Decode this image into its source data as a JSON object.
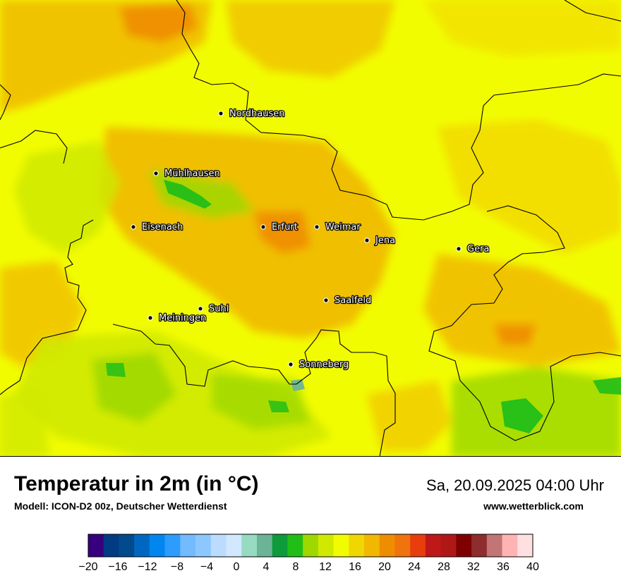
{
  "map": {
    "cities": [
      {
        "name": "Nordhausen"
      },
      {
        "name": "Mühlhausen"
      },
      {
        "name": "Eisenach"
      },
      {
        "name": "Erfurt"
      },
      {
        "name": "Weimar"
      },
      {
        "name": "Jena"
      },
      {
        "name": "Gera"
      },
      {
        "name": "Saalfeld"
      },
      {
        "name": "Suhl"
      },
      {
        "name": "Meiningen"
      },
      {
        "name": "Sonneberg"
      }
    ],
    "base_color": "#f2fc00"
  },
  "footer": {
    "title": "Temperatur in 2m (in °C)",
    "subtitle": "Modell: ICON-D2 00z, Deutscher Wetterdienst",
    "datetime": "Sa, 20.09.2025 04:00 Uhr",
    "site": "www.wetterblick.com"
  },
  "legend": {
    "tick_labels": [
      "−20",
      "−16",
      "−12",
      "−8",
      "−4",
      "0",
      "4",
      "8",
      "12",
      "16",
      "20",
      "24",
      "28",
      "32",
      "36",
      "40"
    ],
    "colors": [
      "#36007e",
      "#013b83",
      "#014a8b",
      "#0067c0",
      "#0186ef",
      "#2d9cff",
      "#73baff",
      "#8cc8ff",
      "#bcdcff",
      "#d2e8ff",
      "#95dac1",
      "#6bb497",
      "#0e9b3c",
      "#22be18",
      "#9ed800",
      "#cfe900",
      "#f2fc00",
      "#f1d701",
      "#f0b801",
      "#ef8d01",
      "#f0730e",
      "#e83e0d",
      "#be1818",
      "#b01818",
      "#7f0000",
      "#8e2d2d",
      "#c37474",
      "#ffb3b3",
      "#ffe0e0"
    ]
  }
}
